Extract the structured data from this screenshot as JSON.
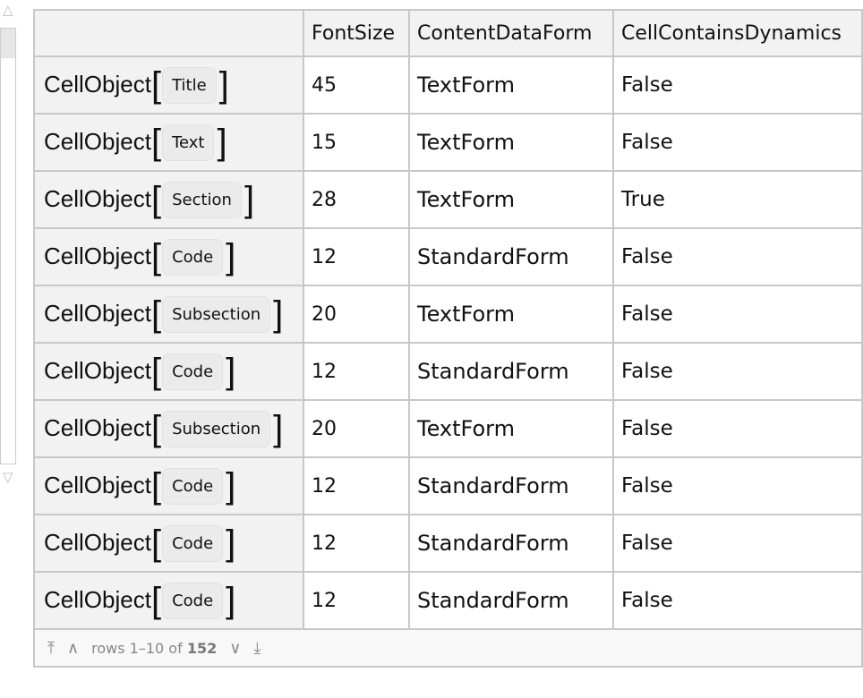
{
  "columns": [
    "",
    "FontSize",
    "ContentDataForm",
    "CellContainsDynamics"
  ],
  "rows": [
    {
      "key": "CellObject",
      "style": "Title",
      "font_size": "45",
      "form": "TextForm",
      "dynamics": "False"
    },
    {
      "key": "CellObject",
      "style": "Text",
      "font_size": "15",
      "form": "TextForm",
      "dynamics": "False"
    },
    {
      "key": "CellObject",
      "style": "Section",
      "font_size": "28",
      "form": "TextForm",
      "dynamics": "True"
    },
    {
      "key": "CellObject",
      "style": "Code",
      "font_size": "12",
      "form": "StandardForm",
      "dynamics": "False"
    },
    {
      "key": "CellObject",
      "style": "Subsection",
      "font_size": "20",
      "form": "TextForm",
      "dynamics": "False"
    },
    {
      "key": "CellObject",
      "style": "Code",
      "font_size": "12",
      "form": "StandardForm",
      "dynamics": "False"
    },
    {
      "key": "CellObject",
      "style": "Subsection",
      "font_size": "20",
      "form": "TextForm",
      "dynamics": "False"
    },
    {
      "key": "CellObject",
      "style": "Code",
      "font_size": "12",
      "form": "StandardForm",
      "dynamics": "False"
    },
    {
      "key": "CellObject",
      "style": "Code",
      "font_size": "12",
      "form": "StandardForm",
      "dynamics": "False"
    },
    {
      "key": "CellObject",
      "style": "Code",
      "font_size": "12",
      "form": "StandardForm",
      "dynamics": "False"
    }
  ],
  "footer": {
    "rows_label": "rows 1–10 of ",
    "total": "152",
    "first_icon": "first-page-icon",
    "prev_icon": "previous-page-icon",
    "next_icon": "next-page-icon",
    "last_icon": "last-page-icon"
  },
  "scrollbar": {
    "up_icon": "triangle-up-icon",
    "down_icon": "triangle-down-icon"
  }
}
